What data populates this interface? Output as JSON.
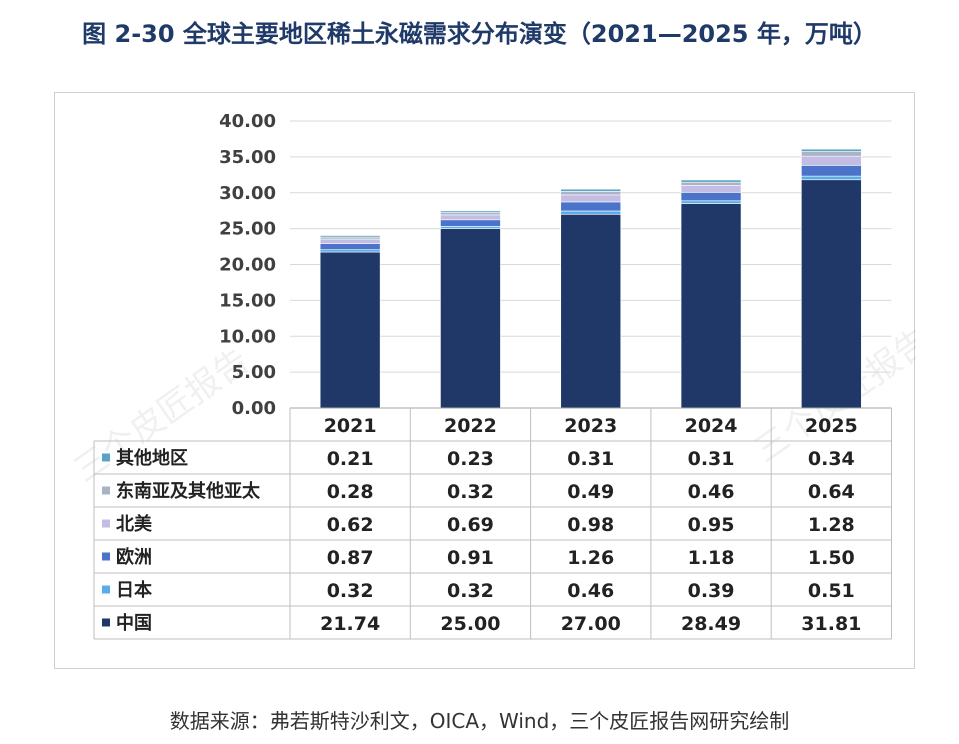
{
  "title": "图 2-30 全球主要地区稀土永磁需求分布演变（2021—2025 年，万吨）",
  "source": "数据来源：弗若斯特沙利文，OICA，Wind，三个皮匠报告网研究绘制",
  "watermark": "三个皮匠报告",
  "chart_data": {
    "type": "bar",
    "stacked": true,
    "title": "图 2-30 全球主要地区稀土永磁需求分布演变（2021—2025 年，万吨）",
    "categories": [
      "2021",
      "2022",
      "2023",
      "2024",
      "2025"
    ],
    "ylim": [
      0,
      40
    ],
    "yticks": [
      "0.00",
      "5.00",
      "10.00",
      "15.00",
      "20.00",
      "25.00",
      "30.00",
      "35.00",
      "40.00"
    ],
    "grid": true,
    "legend": "data-table",
    "series": [
      {
        "name": "中国",
        "color": "#1f3868",
        "values": [
          21.74,
          25.0,
          27.0,
          28.49,
          31.81
        ],
        "labels": [
          "21.74",
          "25.00",
          "27.00",
          "28.49",
          "31.81"
        ]
      },
      {
        "name": "日本",
        "color": "#5aace8",
        "values": [
          0.32,
          0.32,
          0.46,
          0.39,
          0.51
        ],
        "labels": [
          "0.32",
          "0.32",
          "0.46",
          "0.39",
          "0.51"
        ]
      },
      {
        "name": "欧洲",
        "color": "#4a73c9",
        "values": [
          0.87,
          0.91,
          1.26,
          1.18,
          1.5
        ],
        "labels": [
          "0.87",
          "0.91",
          "1.26",
          "1.18",
          "1.50"
        ]
      },
      {
        "name": "北美",
        "color": "#c3bde6",
        "values": [
          0.62,
          0.69,
          0.98,
          0.95,
          1.28
        ],
        "labels": [
          "0.62",
          "0.69",
          "0.98",
          "0.95",
          "1.28"
        ]
      },
      {
        "name": "东南亚及其他亚太",
        "color": "#aab3c4",
        "values": [
          0.28,
          0.32,
          0.49,
          0.46,
          0.64
        ],
        "labels": [
          "0.28",
          "0.32",
          "0.49",
          "0.46",
          "0.64"
        ]
      },
      {
        "name": "其他地区",
        "color": "#58a3c6",
        "values": [
          0.21,
          0.23,
          0.31,
          0.31,
          0.34
        ],
        "labels": [
          "0.21",
          "0.23",
          "0.31",
          "0.31",
          "0.34"
        ]
      }
    ]
  }
}
